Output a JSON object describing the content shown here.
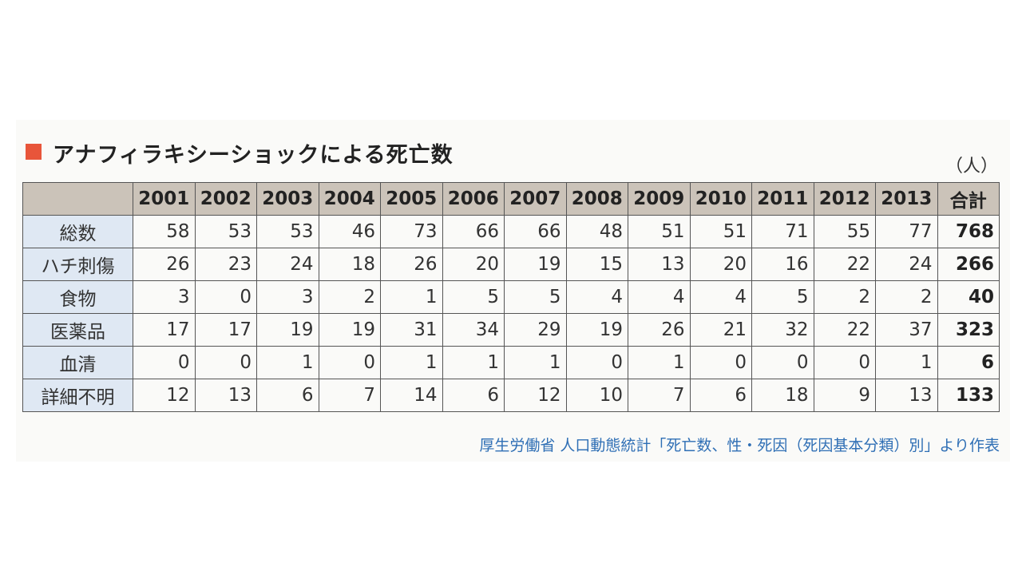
{
  "header": {
    "title": "アナフィラキシーショックによる死亡数",
    "unit": "（人）"
  },
  "table": {
    "columns": [
      "",
      "2001",
      "2002",
      "2003",
      "2004",
      "2005",
      "2006",
      "2007",
      "2008",
      "2009",
      "2010",
      "2011",
      "2012",
      "2013",
      "合計"
    ],
    "rows": [
      [
        "総数",
        58,
        53,
        53,
        46,
        73,
        66,
        66,
        48,
        51,
        51,
        71,
        55,
        77,
        768
      ],
      [
        "ハチ刺傷",
        26,
        23,
        24,
        18,
        26,
        20,
        19,
        15,
        13,
        20,
        16,
        22,
        24,
        266
      ],
      [
        "食物",
        3,
        0,
        3,
        2,
        1,
        5,
        5,
        4,
        4,
        4,
        5,
        2,
        2,
        40
      ],
      [
        "医薬品",
        17,
        17,
        19,
        19,
        31,
        34,
        29,
        19,
        26,
        21,
        32,
        22,
        37,
        323
      ],
      [
        "血清",
        0,
        0,
        1,
        0,
        1,
        1,
        1,
        0,
        1,
        0,
        0,
        0,
        1,
        6
      ],
      [
        "詳細不明",
        12,
        13,
        6,
        7,
        14,
        6,
        12,
        10,
        7,
        6,
        18,
        9,
        13,
        133
      ]
    ]
  },
  "footer": {
    "source": "厚生労働省 人口動態統計「死亡数、性・死因（死因基本分類）別」より作表"
  }
}
